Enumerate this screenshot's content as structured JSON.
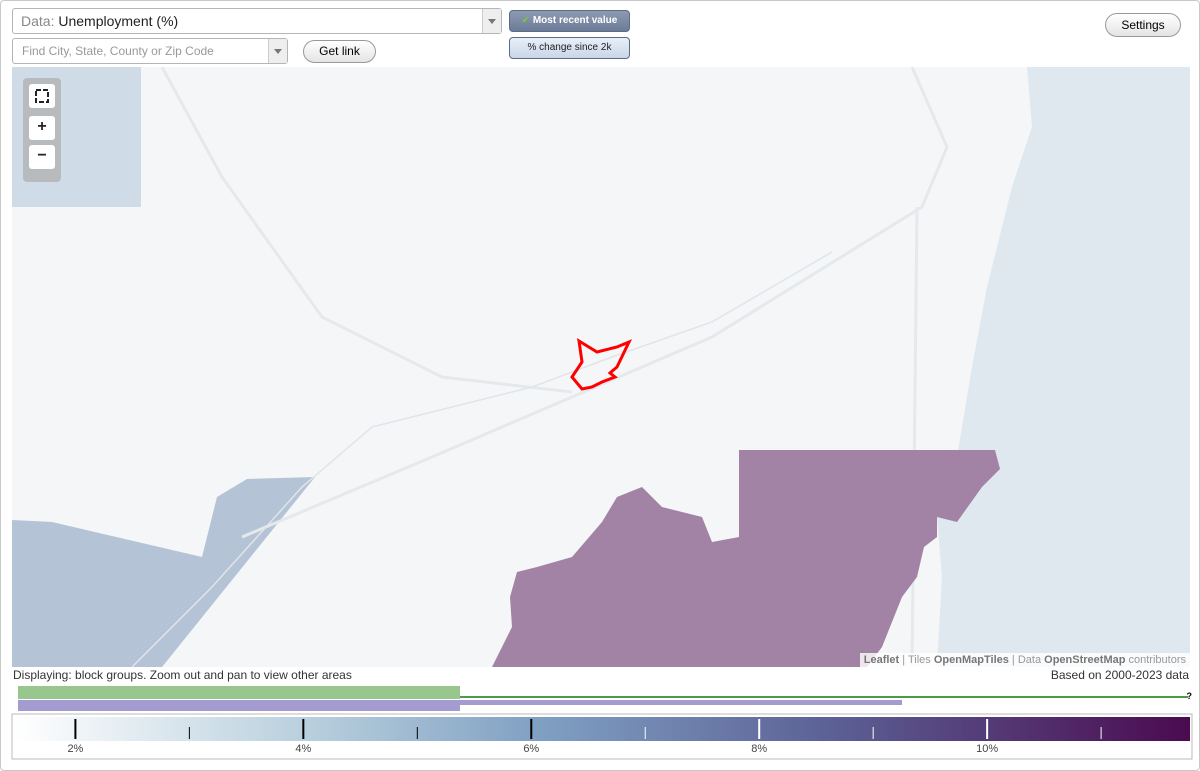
{
  "toolbar": {
    "data_prefix": "Data:",
    "data_value": "Unemployment (%)",
    "search_placeholder": "Find City, State, County or Zip Code",
    "get_link": "Get link",
    "toggle_recent": "Most recent value",
    "toggle_change": "% change since 2k",
    "settings": "Settings"
  },
  "map": {
    "zoom_controls": [
      "+",
      "−"
    ],
    "attribution": [
      "Leaflet",
      "|",
      "Tiles",
      "OpenMapTiles",
      "|",
      "Data",
      "OpenStreetMap",
      "contributors"
    ]
  },
  "footer": {
    "displaying": "Displaying: block groups. Zoom out and pan to view other areas",
    "based_on": "Based on 2000-2023 data",
    "help": "?"
  },
  "legend": {
    "range": [
      1.47,
      11.78
    ],
    "ticks": [
      {
        "value": 2,
        "label": "2%"
      },
      {
        "value": 4,
        "label": "4%"
      },
      {
        "value": 6,
        "label": "6%"
      },
      {
        "value": 8,
        "label": "8%"
      },
      {
        "value": 10,
        "label": "10%"
      }
    ],
    "minor_ticks": [
      3,
      5,
      7,
      9,
      11
    ]
  }
}
